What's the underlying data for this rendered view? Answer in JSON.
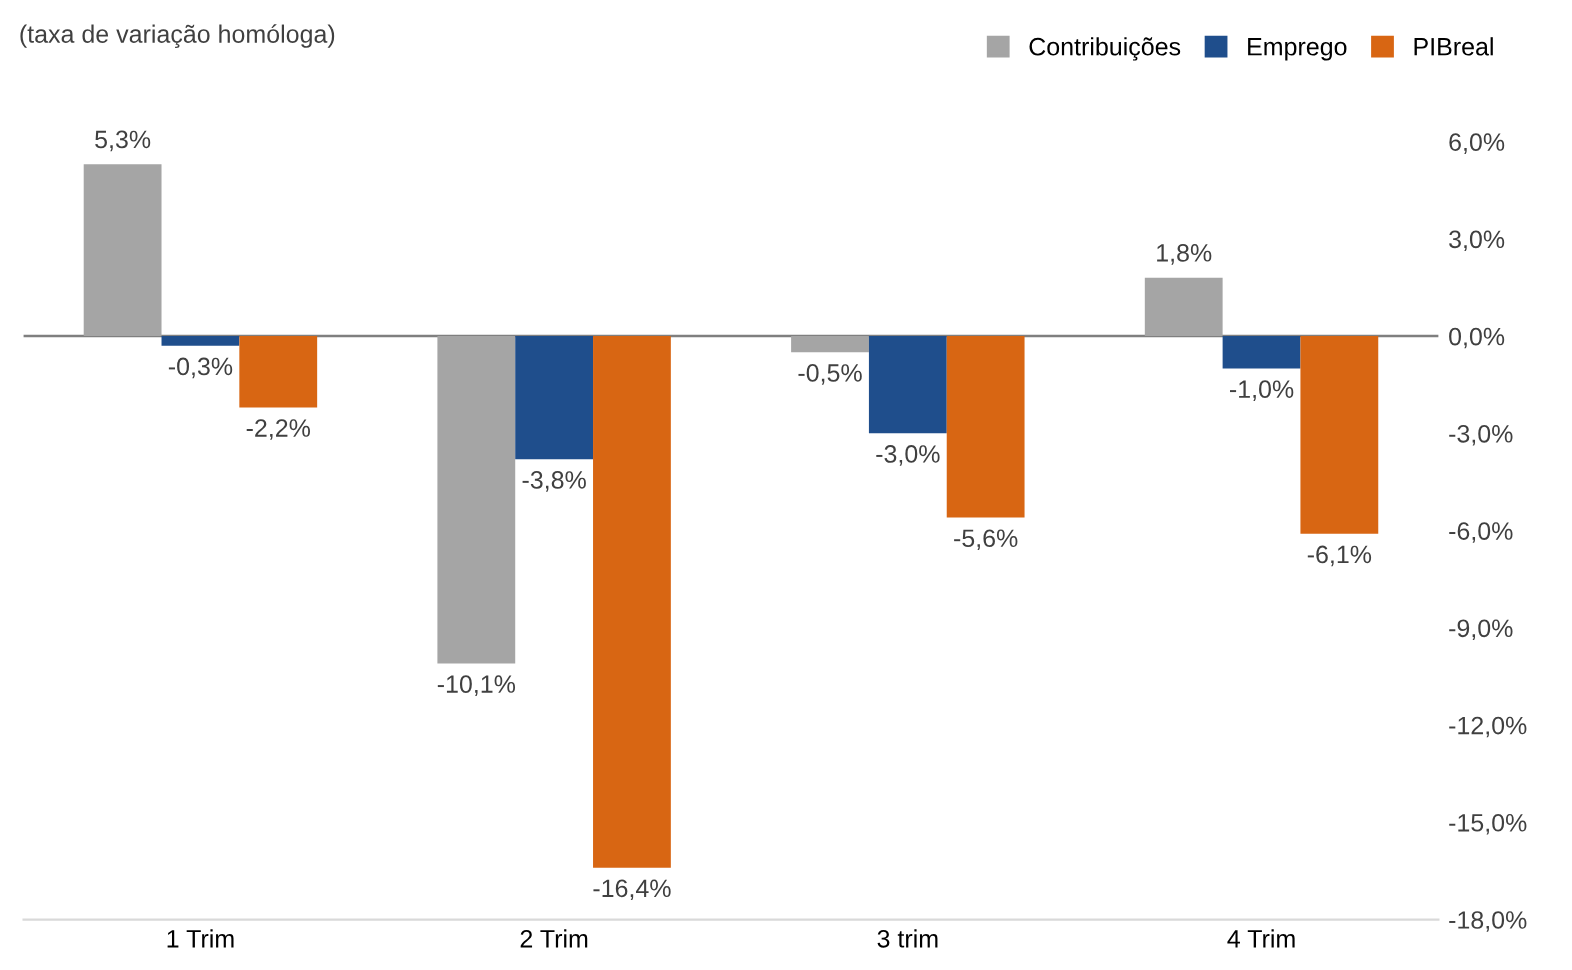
{
  "chart_data": {
    "type": "bar",
    "ylabel": "(taxa de variação homóloga)",
    "categories": [
      "1 Trim",
      "2 Trim",
      "3 trim",
      "4 Trim"
    ],
    "series": [
      {
        "name": "Contribuições",
        "color": "#a5a5a5",
        "values": [
          5.3,
          -10.1,
          -0.5,
          1.8
        ],
        "value_labels": [
          "5,3%",
          "-10,1%",
          "-0,5%",
          "1,8%"
        ]
      },
      {
        "name": "Emprego",
        "color": "#1f4e8c",
        "values": [
          -0.3,
          -3.8,
          -3.0,
          -1.0
        ],
        "value_labels": [
          "-0,3%",
          "-3,8%",
          "-3,0%",
          "-1,0%"
        ]
      },
      {
        "name": "PIBreal",
        "color": "#d86613",
        "values": [
          -2.2,
          -16.4,
          -5.6,
          -6.1
        ],
        "value_labels": [
          "-2,2%",
          "-16,4%",
          "-5,6%",
          "-6,1%"
        ]
      }
    ],
    "ylim": [
      -18,
      6
    ],
    "yticks": [
      {
        "value": 6,
        "label": "6,0%"
      },
      {
        "value": 3,
        "label": "3,0%"
      },
      {
        "value": 0,
        "label": "0,0%"
      },
      {
        "value": -3,
        "label": "-3,0%"
      },
      {
        "value": -6,
        "label": "-6,0%"
      },
      {
        "value": -9,
        "label": "-9,0%"
      },
      {
        "value": -12,
        "label": "-12,0%"
      },
      {
        "value": -15,
        "label": "-15,0%"
      },
      {
        "value": -18,
        "label": "-18,0%"
      }
    ],
    "ref_lines": [
      {
        "axis": "y",
        "value": 0,
        "color": "#7f7f7f"
      }
    ],
    "legend": "top right",
    "grid": false
  }
}
